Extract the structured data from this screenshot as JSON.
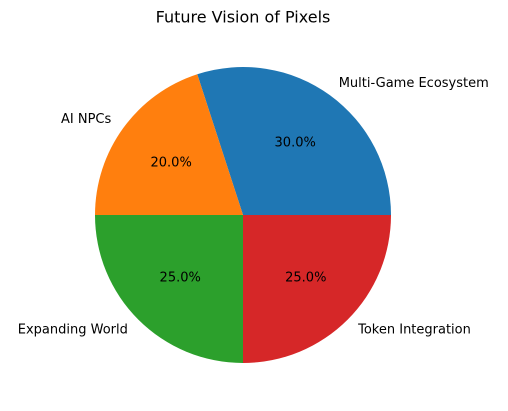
{
  "chart_data": {
    "type": "pie",
    "title": "Future Vision of Pixels",
    "categories": [
      "Multi-Game Ecosystem",
      "AI NPCs",
      "Expanding World",
      "Token Integration"
    ],
    "values": [
      30,
      20,
      25,
      25
    ],
    "value_labels": [
      "30.0%",
      "20.0%",
      "25.0%",
      "25.0%"
    ],
    "colors": [
      "#1f77b4",
      "#ff7f0e",
      "#2ca02c",
      "#d62728"
    ]
  }
}
